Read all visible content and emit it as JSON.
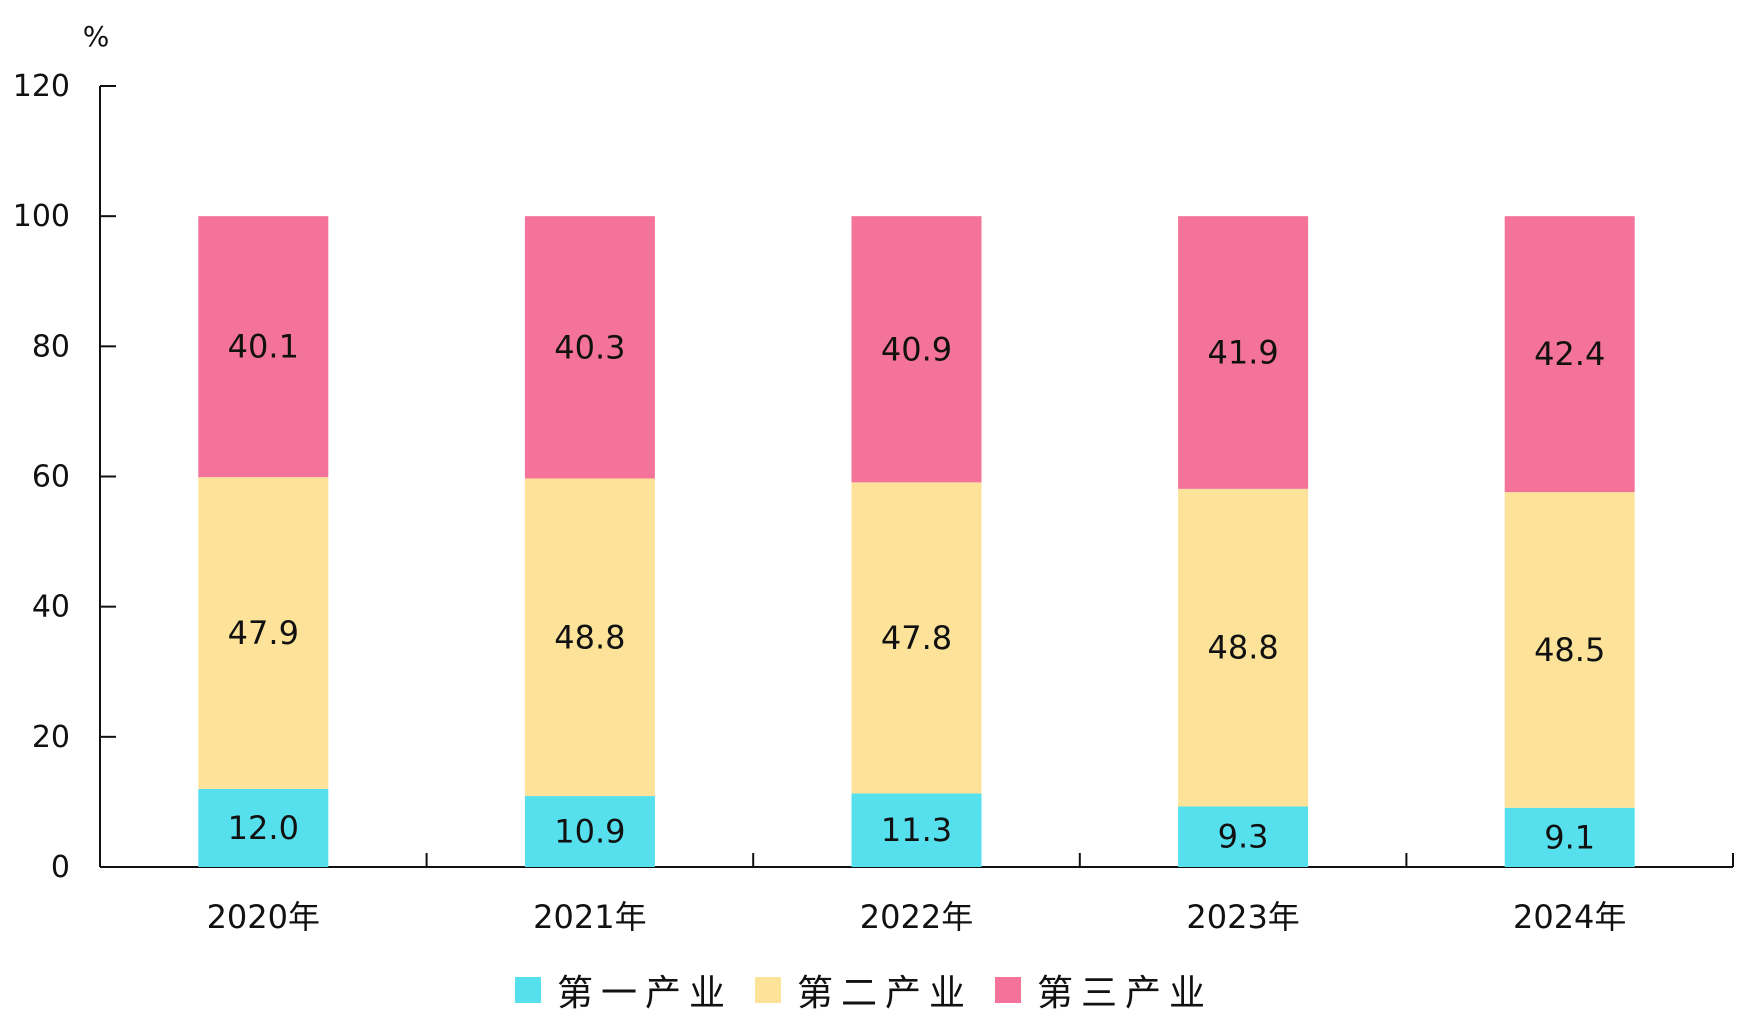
{
  "chart_data": {
    "type": "bar",
    "stacked": true,
    "unit_label": "%",
    "title": "",
    "xlabel": "",
    "ylabel": "",
    "ylim": [
      0,
      120
    ],
    "yticks": [
      0,
      20,
      40,
      60,
      80,
      100,
      120
    ],
    "grid": false,
    "legend_position": "bottom",
    "categories": [
      "2020年",
      "2021年",
      "2022年",
      "2023年",
      "2024年"
    ],
    "series": [
      {
        "name": "第一产业",
        "color": "#56e0ee",
        "values": [
          12.0,
          10.9,
          11.3,
          9.3,
          9.1
        ],
        "labels": [
          "12.0",
          "10.9",
          "11.3",
          "9.3",
          "9.1"
        ]
      },
      {
        "name": "第二产业",
        "color": "#fde39a",
        "values": [
          47.9,
          48.8,
          47.8,
          48.8,
          48.5
        ],
        "labels": [
          "47.9",
          "48.8",
          "47.8",
          "48.8",
          "48.5"
        ]
      },
      {
        "name": "第三产业",
        "color": "#f4739a",
        "values": [
          40.1,
          40.3,
          40.9,
          41.9,
          42.4
        ],
        "labels": [
          "40.1",
          "40.3",
          "40.9",
          "41.9",
          "42.4"
        ]
      }
    ]
  }
}
